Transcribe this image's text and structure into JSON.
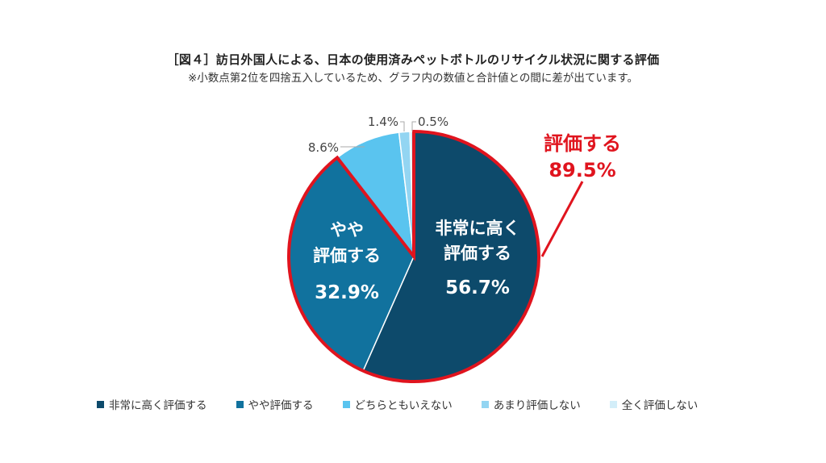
{
  "header": {
    "title": "［図４］訪日外国人による、日本の使用済みペットボトルのリサイクル状況に関する評価",
    "subtitle": "※小数点第2位を四捨五入しているため、グラフ内の数値と合計値との間に差が出ています。"
  },
  "callout": {
    "label": "評価する",
    "value": "89.5%",
    "color": "#e0141e"
  },
  "slices": [
    {
      "name": "非常に高く評価する",
      "inner_line1": "非常に高く",
      "inner_line2": "評価する",
      "value_label": "56.7%",
      "color": "#0d4a6b"
    },
    {
      "name": "やや評価する",
      "inner_line1": "やや",
      "inner_line2": "評価する",
      "value_label": "32.9%",
      "color": "#11729e"
    },
    {
      "name": "どちらともいえない",
      "value_label": "8.6%",
      "color": "#5ac4ef"
    },
    {
      "name": "あまり評価しない",
      "value_label": "1.4%",
      "color": "#93d5f2"
    },
    {
      "name": "全く評価しない",
      "value_label": "0.5%",
      "color": "#d3eef9"
    }
  ],
  "legend": [
    {
      "label": "非常に高く評価する",
      "color": "#0d4a6b"
    },
    {
      "label": "やや評価する",
      "color": "#11729e"
    },
    {
      "label": "どちらともいえない",
      "color": "#5ac4ef"
    },
    {
      "label": "あまり評価しない",
      "color": "#93d5f2"
    },
    {
      "label": "全く評価しない",
      "color": "#d3eef9"
    }
  ],
  "chart_data": {
    "type": "pie",
    "title": "［図４］訪日外国人による、日本の使用済みペットボトルのリサイクル状況に関する評価",
    "subtitle": "※小数点第2位を四捨五入しているため、グラフ内の数値と合計値との間に差が出ています。",
    "categories": [
      "非常に高く評価する",
      "やや評価する",
      "どちらともいえない",
      "あまり評価しない",
      "全く評価しない"
    ],
    "values": [
      56.7,
      32.9,
      8.6,
      1.4,
      0.5
    ],
    "unit": "%",
    "annotations": [
      {
        "text": "評価する 89.5%",
        "covers": [
          "非常に高く評価する",
          "やや評価する"
        ]
      }
    ],
    "legend_position": "bottom",
    "start_angle": "12 o'clock, clockwise"
  }
}
